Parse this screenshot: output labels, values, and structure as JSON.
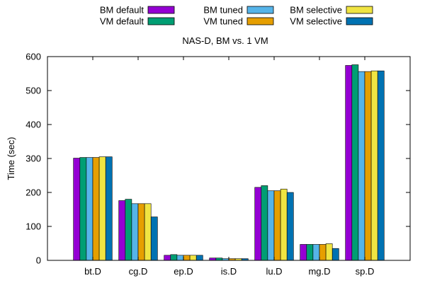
{
  "chart_data": {
    "type": "bar",
    "title": "NAS-D, BM vs. 1 VM",
    "xlabel": "",
    "ylabel": "Time (sec)",
    "ylim": [
      0,
      600
    ],
    "yticks": [
      0,
      100,
      200,
      300,
      400,
      500,
      600
    ],
    "grid": false,
    "legend_position": "top",
    "categories": [
      "bt.D",
      "cg.D",
      "ep.D",
      "is.D",
      "lu.D",
      "mg.D",
      "sp.D"
    ],
    "series": [
      {
        "name": "BM default",
        "color": "#9400d3",
        "values": [
          301,
          176,
          15,
          7,
          215,
          47,
          574
        ]
      },
      {
        "name": "VM default",
        "color": "#009e73",
        "values": [
          303,
          180,
          17,
          7,
          220,
          47,
          576
        ]
      },
      {
        "name": "BM tuned",
        "color": "#56b4e9",
        "values": [
          303,
          167,
          15,
          5,
          205,
          47,
          556
        ]
      },
      {
        "name": "VM tuned",
        "color": "#e69f00",
        "values": [
          303,
          167,
          15,
          5,
          205,
          47,
          556
        ]
      },
      {
        "name": "BM selective",
        "color": "#f0e442",
        "values": [
          305,
          167,
          15,
          5,
          210,
          49,
          558
        ]
      },
      {
        "name": "VM selective",
        "color": "#0072b2",
        "values": [
          305,
          128,
          15,
          5,
          200,
          35,
          558
        ]
      }
    ]
  }
}
